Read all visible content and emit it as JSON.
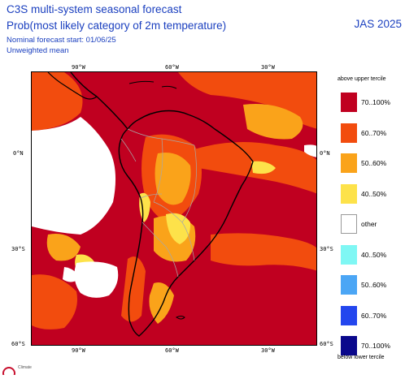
{
  "header": {
    "title": "C3S multi-system seasonal forecast",
    "subtitle": "Prob(most likely category of 2m temperature)",
    "note_start": "Nominal forecast start: 01/06/25",
    "note_mean": "Unweighted mean",
    "season": "JAS 2025"
  },
  "map": {
    "lon_labels": [
      "90°W",
      "60°W",
      "30°W"
    ],
    "lat_labels": [
      "0°N",
      "30°S",
      "60°S"
    ],
    "colors": {
      "c70": "#c00020",
      "c60": "#f24c0e",
      "c50": "#faa31a",
      "c40": "#fde24a",
      "other": "#ffffff",
      "coast": "#000000",
      "border": "#a8a8a8"
    }
  },
  "legend": {
    "upper_caption": "above upper tercile",
    "lower_caption": "below lower tercile",
    "items": [
      {
        "label": "70..100%",
        "color": "#c00020"
      },
      {
        "label": "60..70%",
        "color": "#f24c0e"
      },
      {
        "label": "50..60%",
        "color": "#faa31a"
      },
      {
        "label": "40..50%",
        "color": "#fde24a"
      },
      {
        "label": "other",
        "color": "#ffffff"
      },
      {
        "label": "40..50%",
        "color": "#7ff7f4"
      },
      {
        "label": "50..60%",
        "color": "#4ba6f5"
      },
      {
        "label": "60..70%",
        "color": "#2346ee"
      },
      {
        "label": "70..100%",
        "color": "#0a088c"
      }
    ]
  },
  "logo": {
    "text": "Climate"
  }
}
